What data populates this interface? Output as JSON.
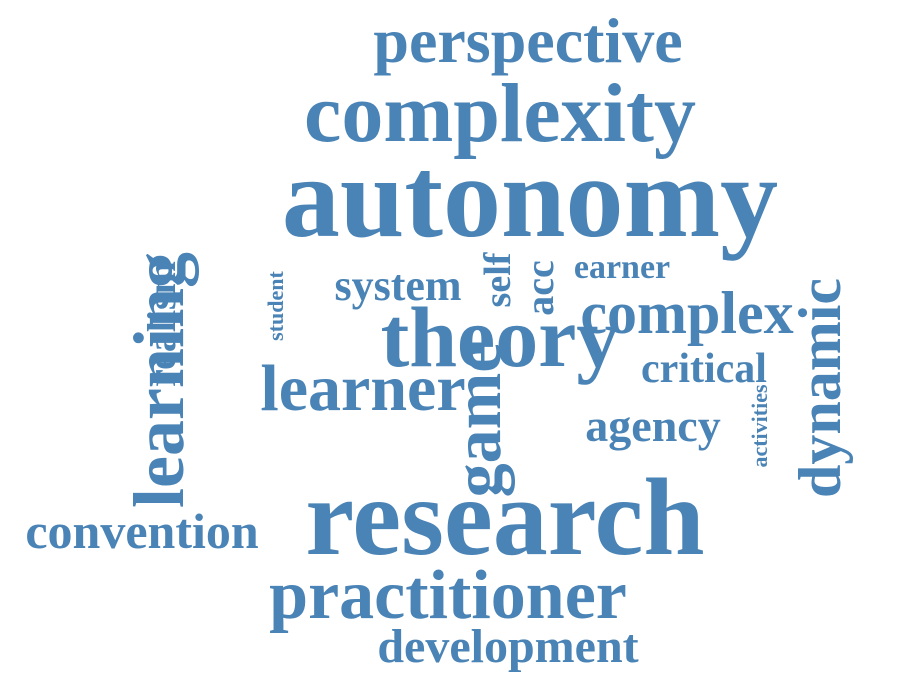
{
  "word_color": "#4a83b5",
  "background": "#ffffff",
  "words": [
    {
      "id": "perspective",
      "text": "perspective",
      "orientation": "horizontal"
    },
    {
      "id": "complexity",
      "text": "complexity",
      "orientation": "horizontal"
    },
    {
      "id": "autonomy",
      "text": "autonomy",
      "orientation": "horizontal"
    },
    {
      "id": "realism",
      "text": "realism",
      "orientation": "vertical"
    },
    {
      "id": "learning",
      "text": "learning",
      "orientation": "vertical"
    },
    {
      "id": "student",
      "text": "student",
      "orientation": "vertical"
    },
    {
      "id": "system",
      "text": "system",
      "orientation": "horizontal"
    },
    {
      "id": "self",
      "text": "self",
      "orientation": "vertical"
    },
    {
      "id": "acc",
      "text": "acc",
      "orientation": "vertical"
    },
    {
      "id": "earner",
      "text": "earner",
      "orientation": "horizontal"
    },
    {
      "id": "complex",
      "text": "complex",
      "orientation": "horizontal"
    },
    {
      "id": "dynamic",
      "text": "dynamic",
      "orientation": "vertical"
    },
    {
      "id": "theory",
      "text": "theory",
      "orientation": "horizontal"
    },
    {
      "id": "learner",
      "text": "learner",
      "orientation": "horizontal"
    },
    {
      "id": "critical",
      "text": "critical",
      "orientation": "horizontal"
    },
    {
      "id": "game",
      "text": "game",
      "orientation": "vertical"
    },
    {
      "id": "agency",
      "text": "agency",
      "orientation": "horizontal"
    },
    {
      "id": "activities",
      "text": "activities",
      "orientation": "vertical"
    },
    {
      "id": "convention",
      "text": "convention",
      "orientation": "horizontal"
    },
    {
      "id": "research",
      "text": "research",
      "orientation": "horizontal"
    },
    {
      "id": "practitioner",
      "text": "practitioner",
      "orientation": "horizontal"
    },
    {
      "id": "development",
      "text": "development",
      "orientation": "horizontal"
    }
  ]
}
